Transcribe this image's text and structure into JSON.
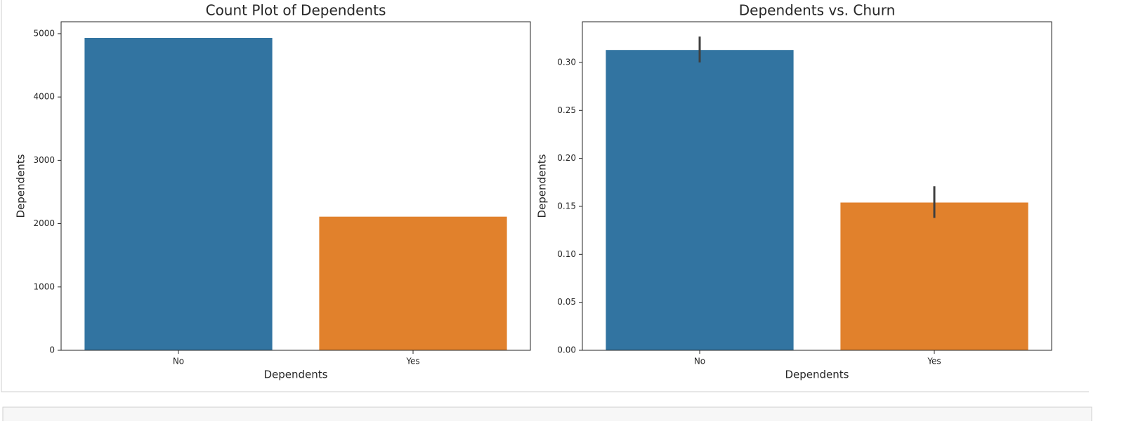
{
  "chart_data": [
    {
      "type": "bar",
      "title": "Count Plot of Dependents",
      "x_label": "Dependents",
      "y_label": "Dependents",
      "categories": [
        "No",
        "Yes"
      ],
      "values": [
        4933,
        2110
      ],
      "colors": [
        "#3274a1",
        "#e1812c"
      ],
      "ylim": [
        0,
        5188
      ],
      "yticks": [
        0,
        1000,
        2000,
        3000,
        4000,
        5000
      ]
    },
    {
      "type": "bar",
      "title": "Dependents vs. Churn",
      "x_label": "Dependents",
      "y_label": "Dependents",
      "categories": [
        "No",
        "Yes"
      ],
      "values": [
        0.313,
        0.154
      ],
      "ci_low": [
        0.3,
        0.138
      ],
      "ci_high": [
        0.327,
        0.171
      ],
      "colors": [
        "#3274a1",
        "#e1812c"
      ],
      "error_color": "#3f3f3f",
      "ylim": [
        0,
        0.3424
      ],
      "yticks": [
        {
          "value": 0,
          "label": "0.00"
        },
        {
          "value": 0.05,
          "label": "0.05"
        },
        {
          "value": 0.1,
          "label": "0.10"
        },
        {
          "value": 0.15,
          "label": "0.15"
        },
        {
          "value": 0.2,
          "label": "0.20"
        },
        {
          "value": 0.25,
          "label": "0.25"
        },
        {
          "value": 0.3,
          "label": "0.30"
        }
      ]
    }
  ]
}
